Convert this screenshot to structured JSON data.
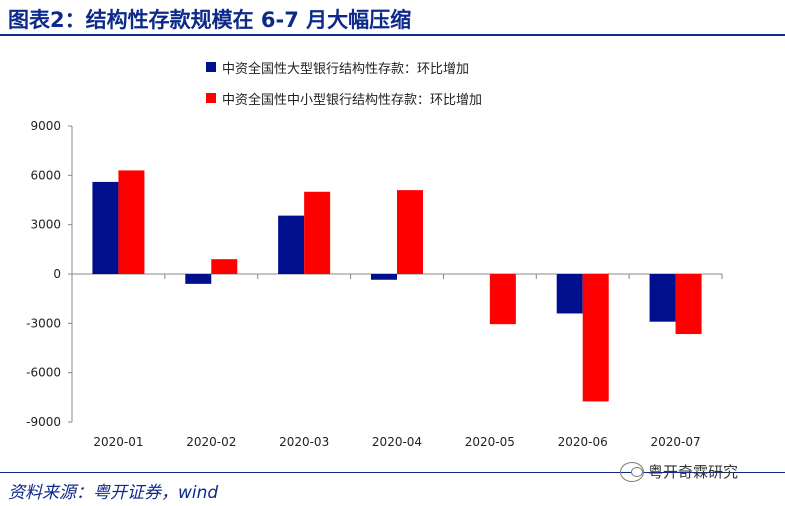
{
  "header": {
    "title": "图表2：结构性存款规模在 6-7 月大幅压缩"
  },
  "footer": {
    "source": "资料来源：粤开证券，wind",
    "watermark": "粤开奇霖研究",
    "watermark_icon": "wechat-icon"
  },
  "colors": {
    "title": "#0d2a8a",
    "large_banks": "#000f8c",
    "small_banks": "#ff0000",
    "axis": "#888888"
  },
  "chart_data": {
    "type": "bar",
    "categories": [
      "2020-01",
      "2020-02",
      "2020-03",
      "2020-04",
      "2020-05",
      "2020-06",
      "2020-07"
    ],
    "series": [
      {
        "name": "中资全国性大型银行结构性存款：环比增加",
        "color": "#000f8c",
        "values": [
          5600,
          -600,
          3550,
          -350,
          0,
          -2400,
          -2900
        ]
      },
      {
        "name": "中资全国性中小型银行结构性存款：环比增加",
        "color": "#ff0000",
        "values": [
          6300,
          900,
          5000,
          5100,
          -3050,
          -7750,
          -3650
        ]
      }
    ],
    "ylim": [
      -9000,
      9000
    ],
    "yticks": [
      9000,
      6000,
      3000,
      0,
      -3000,
      -6000,
      -9000
    ],
    "legend_position": "top-center",
    "grid": false
  }
}
